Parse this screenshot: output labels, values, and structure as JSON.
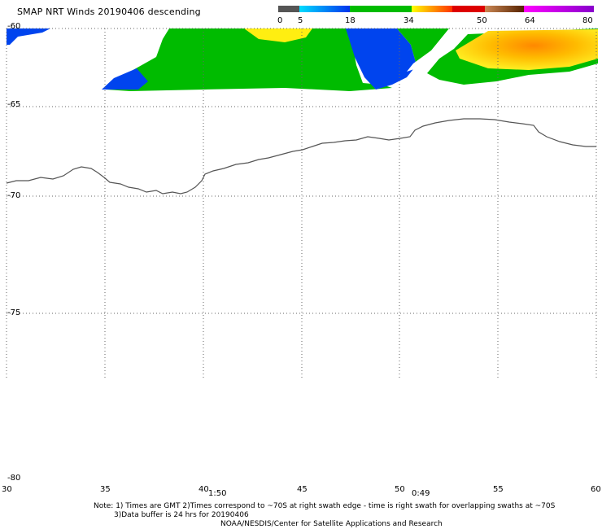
{
  "title": "SMAP NRT Winds  20190406 descending",
  "colorbar": {
    "labels": [
      "0",
      "5",
      "18",
      "34",
      "50",
      "64",
      "80"
    ],
    "colors": [
      "#444444",
      "#bbbbbb",
      "#00ccff",
      "#0055ff",
      "#00cc00",
      "#ffff00",
      "#ff6600",
      "#ff0000",
      "#8b4513",
      "#ff00ff",
      "#9900cc"
    ]
  },
  "lat_labels": [
    "-60",
    "-65",
    "-70",
    "-75",
    "-80"
  ],
  "lon_labels": [
    "30",
    "35",
    "40",
    "45",
    "50",
    "55",
    "60"
  ],
  "swath_times": [
    "1:50",
    "0:49"
  ],
  "notes": {
    "line1": "Note: 1) Times are GMT 2)Times correspond to ~70S at right swath edge - time is right swath for overlapping swaths at ~70S",
    "line2": "3)Data buffer is 24 hrs for 20190406",
    "line3": "NOAA/NESDIS/Center for Satellite Applications and Research"
  },
  "wind_colors": {
    "blue": "#0044ee",
    "green": "#00bb00",
    "yellow": "#ffdd00",
    "orange": "#ff9900",
    "coastline": "#555555"
  }
}
